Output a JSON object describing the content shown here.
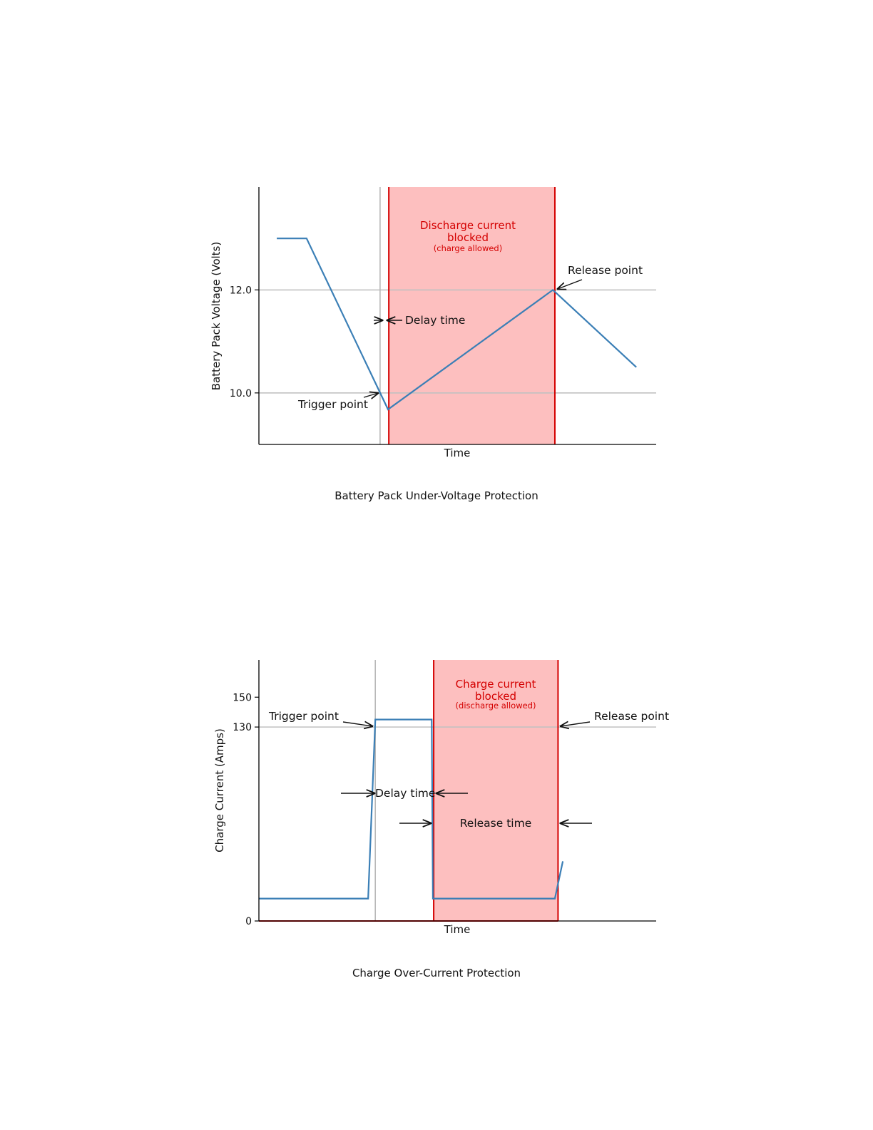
{
  "colors": {
    "line": "#3b7fb6",
    "boundary": "#d40000",
    "shade": "#fdbfbf",
    "ref": "#c0c0c0",
    "axis": "#000000"
  },
  "chart_data": [
    {
      "type": "line",
      "caption": "Battery Pack Under-Voltage Protection",
      "xlabel": "Time",
      "ylabel": "Battery Pack Voltage (Volts)",
      "ylim": [
        9.0,
        14.0
      ],
      "yticks": [
        10.0,
        12.0
      ],
      "ytick_labels": [
        "10.0",
        "12.0"
      ],
      "xlim": [
        0,
        10
      ],
      "series": [
        {
          "x": [
            0.45,
            1.2,
            3.25,
            7.4,
            9.5
          ],
          "y": [
            13.0,
            13.0,
            9.68,
            12.0,
            10.5
          ]
        }
      ],
      "hlines": [
        10.0,
        12.0
      ],
      "trigger_x": 3.05,
      "blocked_region": [
        3.27,
        7.45
      ],
      "blocked_label": [
        "Discharge current",
        "blocked"
      ],
      "blocked_sublabel": "(charge allowed)",
      "annotations": {
        "release": "Release point",
        "delay": "Delay time",
        "trigger": "Trigger point"
      }
    },
    {
      "type": "line",
      "caption": "Charge Over-Current Protection",
      "xlabel": "Time",
      "ylabel": "Charge Current (Amps)",
      "ylim": [
        0,
        175
      ],
      "yticks": [
        0,
        130,
        150
      ],
      "ytick_labels": [
        "0",
        "130",
        "150"
      ],
      "xlim": [
        0,
        10
      ],
      "series": [
        {
          "x": [
            0.0,
            2.75,
            2.93,
            4.35,
            4.38,
            7.45,
            7.65
          ],
          "y": [
            15,
            15,
            135,
            135,
            15,
            15,
            40
          ]
        }
      ],
      "hlines": [
        130
      ],
      "trigger_x": 2.93,
      "blocked_region": [
        4.4,
        7.53
      ],
      "blocked_label": [
        "Charge current",
        "blocked"
      ],
      "blocked_sublabel": "(discharge allowed)",
      "annotations": {
        "trigger": "Trigger point",
        "release": "Release point",
        "delay": "Delay time",
        "release_time": "Release time"
      }
    }
  ]
}
